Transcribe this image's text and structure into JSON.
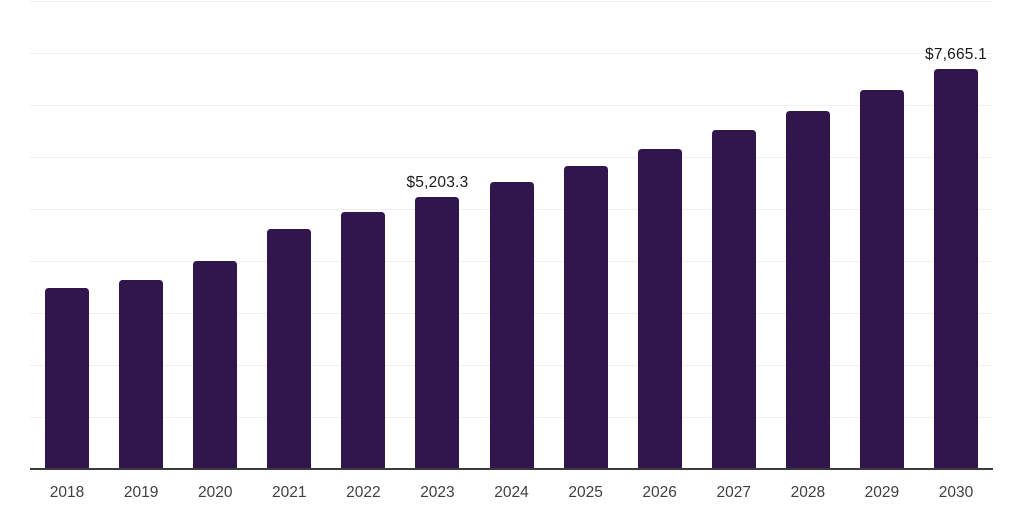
{
  "chart_data": {
    "type": "bar",
    "title": "",
    "xlabel": "",
    "ylabel": "",
    "categories": [
      "2018",
      "2019",
      "2020",
      "2021",
      "2022",
      "2023",
      "2024",
      "2025",
      "2026",
      "2027",
      "2028",
      "2029",
      "2030"
    ],
    "values": [
      3465,
      3612,
      3978,
      4600,
      4921,
      5203.3,
      5498,
      5806,
      6139,
      6499,
      6865,
      7262,
      7665.1
    ],
    "value_labels": {
      "2023": "$5,203.3",
      "2030": "$7,665.1"
    },
    "ylim": [
      0,
      9000
    ],
    "gridline_step": 1000,
    "grid": "horizontal",
    "y_tick_labels_visible": false,
    "legend_position": "none",
    "colors": {
      "bar": "#31164e",
      "gridline": "#f1eff2",
      "axis_line": "#3b3b3b",
      "tick_label": "#3f3f3f",
      "value_label": "#1b1b1b",
      "background": "#ffffff"
    }
  }
}
